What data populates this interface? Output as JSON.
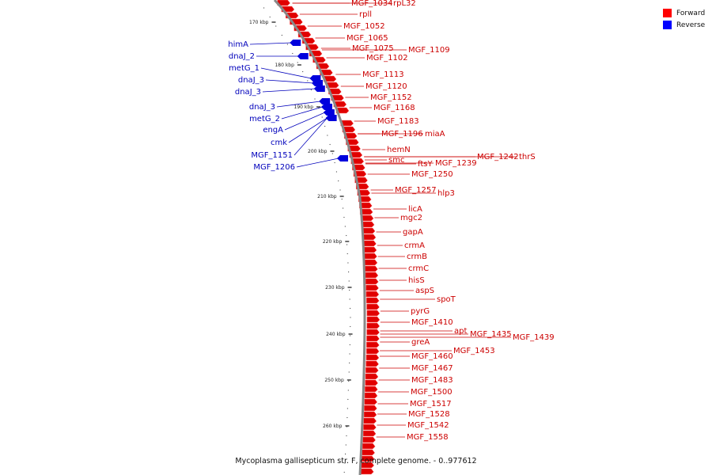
{
  "caption": "Mycoplasma gallisepticum str. F, complete genome. - 0..977612",
  "legend": [
    {
      "label": "Forward",
      "color": "#ff0000"
    },
    {
      "label": "Reverse",
      "color": "#0000ff"
    }
  ],
  "colors": {
    "forward": "#e00000",
    "reverse": "#0000dd",
    "forward_label": "#cc0000",
    "reverse_label": "#0000bb",
    "backbone": "#888888"
  },
  "ticks": [
    "170 kbp",
    "180 kbp",
    "190 kbp",
    "200 kbp",
    "210 kbp",
    "220 kbp",
    "230 kbp",
    "240 kbp",
    "250 kbp",
    "260 kbp"
  ],
  "forward_labels": [
    "MGF_1034",
    "rpL32",
    "rpll",
    "MGF_1052",
    "MGF_1065",
    "MGF_1075",
    "MGF_1109",
    "MGF_1102",
    "MGF_1113",
    "MGF_1120",
    "MGF_1152",
    "MGF_1168",
    "MGF_1183",
    "MGF_1196",
    "miaA",
    "hemN",
    "smc",
    "ftsY",
    "MGF_1239",
    "MGF_1242",
    "thrS",
    "MGF_1250",
    "MGF_1257",
    "hlp3",
    "licA",
    "mgc2",
    "gapA",
    "crmA",
    "crmB",
    "crmC",
    "hisS",
    "aspS",
    "spoT",
    "pyrG",
    "MGF_1410",
    "apt",
    "MGF_1435",
    "MGF_1439",
    "greA",
    "MGF_1453",
    "MGF_1460",
    "MGF_1467",
    "MGF_1483",
    "MGF_1500",
    "MGF_1517",
    "MGF_1528",
    "MGF_1542",
    "MGF_1558"
  ],
  "reverse_labels": [
    "himA",
    "dnaJ_2",
    "metG_1",
    "dnaJ_3",
    "dnaJ_3",
    "dnaJ_3",
    "metG_2",
    "engA",
    "cmk",
    "MGF_1151",
    "MGF_1206"
  ]
}
